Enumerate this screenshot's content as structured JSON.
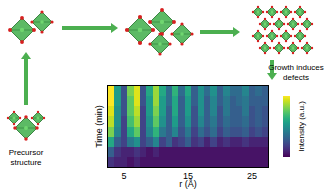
{
  "chart_data": {
    "type": "heatmap",
    "x_label": "r (Å)",
    "y_label": "Time (min)",
    "colorbar_label": "Intensity (a.u.)",
    "x": [
      3,
      4,
      5,
      6,
      7,
      8,
      9,
      10,
      11,
      12,
      13,
      14,
      15,
      16,
      17,
      18,
      19,
      20,
      21,
      22,
      23,
      24,
      25,
      26,
      27
    ],
    "y": [
      0,
      10,
      20,
      30,
      40,
      50,
      60,
      70
    ],
    "z": [
      [
        0.15,
        0.1,
        0.1,
        0.05,
        0.1,
        0.05,
        0.05,
        0.05,
        0.05,
        0.05,
        0.05,
        0.05,
        0.05,
        0.05,
        0.05,
        0.05,
        0.05,
        0.05,
        0.05,
        0.05,
        0.05,
        0.05,
        0.05,
        0.05,
        0.05
      ],
      [
        0.3,
        0.15,
        0.1,
        0.1,
        0.15,
        0.1,
        0.05,
        0.1,
        0.05,
        0.05,
        0.05,
        0.05,
        0.05,
        0.05,
        0.05,
        0.05,
        0.05,
        0.05,
        0.05,
        0.05,
        0.05,
        0.05,
        0.05,
        0.05,
        0.05
      ],
      [
        0.6,
        0.3,
        0.2,
        0.4,
        0.5,
        0.2,
        0.3,
        0.45,
        0.2,
        0.3,
        0.15,
        0.2,
        0.3,
        0.15,
        0.2,
        0.1,
        0.2,
        0.1,
        0.15,
        0.1,
        0.1,
        0.15,
        0.1,
        0.1,
        0.1
      ],
      [
        0.8,
        0.45,
        0.2,
        0.6,
        0.75,
        0.2,
        0.45,
        0.65,
        0.4,
        0.3,
        0.45,
        0.25,
        0.4,
        0.2,
        0.35,
        0.25,
        0.35,
        0.2,
        0.3,
        0.25,
        0.25,
        0.3,
        0.2,
        0.25,
        0.2
      ],
      [
        0.9,
        0.5,
        0.2,
        0.7,
        0.85,
        0.2,
        0.5,
        0.75,
        0.5,
        0.3,
        0.55,
        0.3,
        0.5,
        0.25,
        0.45,
        0.3,
        0.4,
        0.25,
        0.35,
        0.3,
        0.3,
        0.35,
        0.25,
        0.3,
        0.25
      ],
      [
        0.95,
        0.5,
        0.25,
        0.75,
        0.9,
        0.2,
        0.55,
        0.8,
        0.55,
        0.3,
        0.6,
        0.3,
        0.55,
        0.25,
        0.5,
        0.3,
        0.45,
        0.25,
        0.4,
        0.3,
        0.3,
        0.4,
        0.25,
        0.3,
        0.25
      ],
      [
        1.0,
        0.55,
        0.25,
        0.75,
        0.95,
        0.25,
        0.55,
        0.85,
        0.55,
        0.35,
        0.6,
        0.3,
        0.55,
        0.3,
        0.5,
        0.3,
        0.45,
        0.3,
        0.4,
        0.3,
        0.35,
        0.4,
        0.3,
        0.3,
        0.3
      ],
      [
        1.0,
        0.55,
        0.25,
        0.8,
        0.95,
        0.25,
        0.6,
        0.85,
        0.6,
        0.35,
        0.65,
        0.35,
        0.6,
        0.3,
        0.5,
        0.35,
        0.5,
        0.3,
        0.45,
        0.35,
        0.35,
        0.45,
        0.3,
        0.35,
        0.3
      ]
    ],
    "xlim": [
      2.5,
      27.5
    ],
    "xticks": [
      5,
      15,
      25
    ],
    "ylim": [
      -5,
      75
    ],
    "zlim": [
      0,
      1
    ],
    "tick_labels": "x",
    "color": "Viridis"
  },
  "diagram": {
    "labels": [
      [
        "Precursor",
        "structure"
      ],
      [
        "Growth induces",
        "defects"
      ]
    ]
  }
}
